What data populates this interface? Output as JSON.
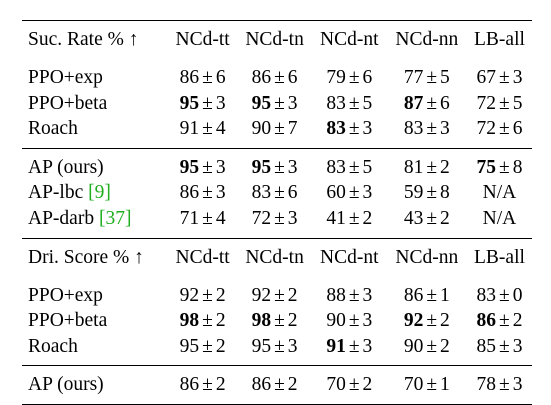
{
  "success_table": {
    "header": {
      "label": "Suc. Rate % ↑",
      "columns": [
        "NCd-tt",
        "NCd-tn",
        "NCd-nt",
        "NCd-nn",
        "LB-all"
      ]
    },
    "rows": [
      {
        "name": "PPO+exp",
        "cite": "",
        "cells": [
          {
            "mean": "86",
            "std": "6",
            "bold": false
          },
          {
            "mean": "86",
            "std": "6",
            "bold": false
          },
          {
            "mean": "79",
            "std": "6",
            "bold": false
          },
          {
            "mean": "77",
            "std": "5",
            "bold": false
          },
          {
            "mean": "67",
            "std": "3",
            "bold": false
          }
        ]
      },
      {
        "name": "PPO+beta",
        "cite": "",
        "cells": [
          {
            "mean": "95",
            "std": "3",
            "bold": true
          },
          {
            "mean": "95",
            "std": "3",
            "bold": true
          },
          {
            "mean": "83",
            "std": "5",
            "bold": false
          },
          {
            "mean": "87",
            "std": "6",
            "bold": true
          },
          {
            "mean": "72",
            "std": "5",
            "bold": false
          }
        ]
      },
      {
        "name": "Roach",
        "cite": "",
        "cells": [
          {
            "mean": "91",
            "std": "4",
            "bold": false
          },
          {
            "mean": "90",
            "std": "7",
            "bold": false
          },
          {
            "mean": "83",
            "std": "3",
            "bold": true
          },
          {
            "mean": "83",
            "std": "3",
            "bold": false
          },
          {
            "mean": "72",
            "std": "6",
            "bold": false
          }
        ]
      },
      {
        "name": "AP (ours)",
        "cite": "",
        "cells": [
          {
            "mean": "95",
            "std": "3",
            "bold": true
          },
          {
            "mean": "95",
            "std": "3",
            "bold": true
          },
          {
            "mean": "83",
            "std": "5",
            "bold": false
          },
          {
            "mean": "81",
            "std": "2",
            "bold": false
          },
          {
            "mean": "75",
            "std": "8",
            "bold": true
          }
        ]
      },
      {
        "name": "AP-lbc",
        "cite": "[9]",
        "cells": [
          {
            "mean": "86",
            "std": "3",
            "bold": false
          },
          {
            "mean": "83",
            "std": "6",
            "bold": false
          },
          {
            "mean": "60",
            "std": "3",
            "bold": false
          },
          {
            "mean": "59",
            "std": "8",
            "bold": false
          },
          {
            "na": "N/A"
          }
        ]
      },
      {
        "name": "AP-darb",
        "cite": "[37]",
        "cells": [
          {
            "mean": "71",
            "std": "4",
            "bold": false
          },
          {
            "mean": "72",
            "std": "3",
            "bold": false
          },
          {
            "mean": "41",
            "std": "2",
            "bold": false
          },
          {
            "mean": "43",
            "std": "2",
            "bold": false
          },
          {
            "na": "N/A"
          }
        ]
      }
    ]
  },
  "driving_table": {
    "header": {
      "label": "Dri. Score % ↑",
      "columns": [
        "NCd-tt",
        "NCd-tn",
        "NCd-nt",
        "NCd-nn",
        "LB-all"
      ]
    },
    "rows": [
      {
        "name": "PPO+exp",
        "cite": "",
        "cells": [
          {
            "mean": "92",
            "std": "2",
            "bold": false
          },
          {
            "mean": "92",
            "std": "2",
            "bold": false
          },
          {
            "mean": "88",
            "std": "3",
            "bold": false
          },
          {
            "mean": "86",
            "std": "1",
            "bold": false
          },
          {
            "mean": "83",
            "std": "0",
            "bold": false
          }
        ]
      },
      {
        "name": "PPO+beta",
        "cite": "",
        "cells": [
          {
            "mean": "98",
            "std": "2",
            "bold": true
          },
          {
            "mean": "98",
            "std": "2",
            "bold": true
          },
          {
            "mean": "90",
            "std": "3",
            "bold": false
          },
          {
            "mean": "92",
            "std": "2",
            "bold": true
          },
          {
            "mean": "86",
            "std": "2",
            "bold": true
          }
        ]
      },
      {
        "name": "Roach",
        "cite": "",
        "cells": [
          {
            "mean": "95",
            "std": "2",
            "bold": false
          },
          {
            "mean": "95",
            "std": "3",
            "bold": false
          },
          {
            "mean": "91",
            "std": "3",
            "bold": true
          },
          {
            "mean": "90",
            "std": "2",
            "bold": false
          },
          {
            "mean": "85",
            "std": "3",
            "bold": false
          }
        ]
      },
      {
        "name": "AP (ours)",
        "cite": "",
        "cells": [
          {
            "mean": "86",
            "std": "2",
            "bold": false
          },
          {
            "mean": "86",
            "std": "2",
            "bold": false
          },
          {
            "mean": "70",
            "std": "2",
            "bold": false
          },
          {
            "mean": "70",
            "std": "1",
            "bold": false
          },
          {
            "mean": "78",
            "std": "3",
            "bold": false
          }
        ]
      }
    ]
  },
  "symbols": {
    "plus_minus": "±"
  }
}
